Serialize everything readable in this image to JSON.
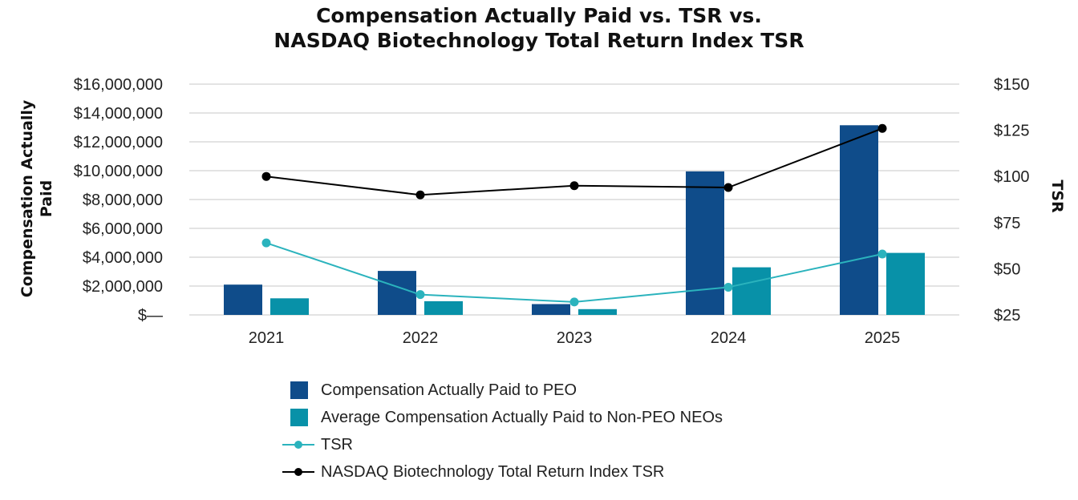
{
  "chart_data": {
    "type": "bar",
    "title": [
      "Compensation Actually Paid vs. TSR vs.",
      "NASDAQ Biotechnology Total Return Index TSR"
    ],
    "ylabel": [
      "Compensation Actually",
      "Paid"
    ],
    "y2label": "TSR",
    "categories": [
      "2021",
      "2022",
      "2023",
      "2024",
      "2025"
    ],
    "ylim": [
      0,
      16000000
    ],
    "y_ticks": [
      "$—",
      "$2,000,000",
      "$4,000,000",
      "$6,000,000",
      "$8,000,000",
      "$10,000,000",
      "$12,000,000",
      "$14,000,000",
      "$16,000,000"
    ],
    "y2lim": [
      25,
      150
    ],
    "y2_ticks": [
      "$25",
      "$50",
      "$75",
      "$100",
      "$125",
      "$150"
    ],
    "grid": true,
    "legend_position": "bottom",
    "series": [
      {
        "name": "Compensation Actually Paid to PEO",
        "type": "bar",
        "axis": "left",
        "color": "#0f4c8a",
        "values": [
          2100000,
          3050000,
          750000,
          9950000,
          13150000
        ]
      },
      {
        "name": "Average Compensation Actually Paid to Non-PEO NEOs",
        "type": "bar",
        "axis": "left",
        "color": "#0891a8",
        "values": [
          1150000,
          950000,
          400000,
          3300000,
          4300000
        ]
      },
      {
        "name": "TSR",
        "type": "line",
        "axis": "right",
        "color": "#2bb3bd",
        "values": [
          64,
          36,
          32,
          40,
          58
        ]
      },
      {
        "name": "NASDAQ Biotechnology Total Return Index TSR",
        "type": "line",
        "axis": "right",
        "color": "#000000",
        "values": [
          100,
          90,
          95,
          94,
          126
        ]
      }
    ]
  }
}
